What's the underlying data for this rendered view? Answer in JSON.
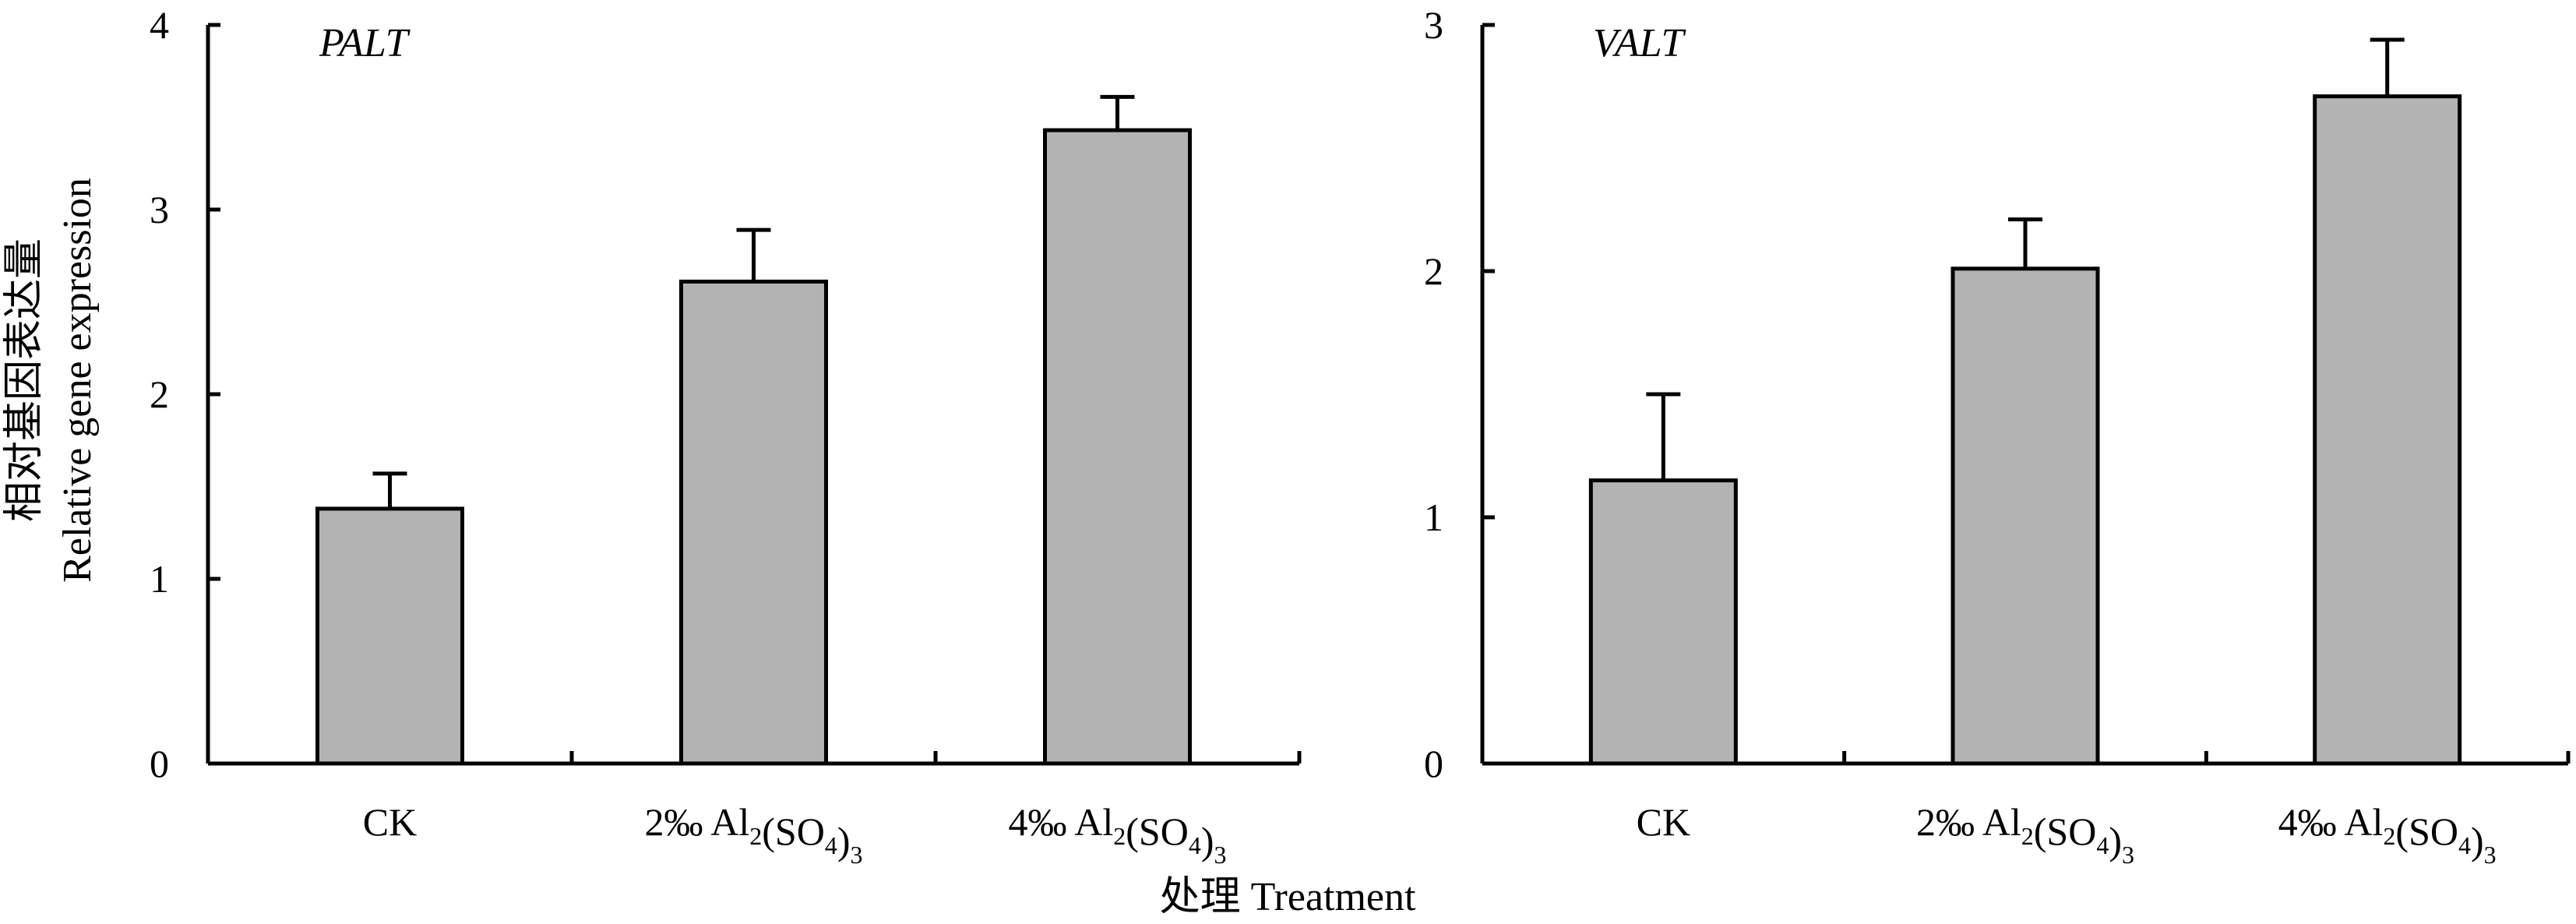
{
  "y_axis_title": {
    "line1": "相对基因表达量",
    "line2": "Relative gene expression"
  },
  "x_axis_title": "处理 Treatment",
  "colors": {
    "bar_fill": "#b3b3b3",
    "bar_stroke": "#000000",
    "axis": "#000000"
  },
  "chart_data": [
    {
      "type": "bar",
      "title": "PALT",
      "categories": [
        {
          "main": "CK",
          "sub1": "",
          "mid": "",
          "sub2": "",
          "tail": ""
        },
        {
          "main": "2‰ Al",
          "sub1": "2",
          "mid": "(SO",
          "sub2": "4",
          "tail": ")"
        },
        {
          "main": "4‰ Al",
          "sub1": "2",
          "mid": "(SO",
          "sub2": "4",
          "tail": ")"
        }
      ],
      "cat_trailing_sub": [
        "",
        "3",
        "3"
      ],
      "values": [
        1.38,
        2.61,
        3.43
      ],
      "errors": [
        0.19,
        0.28,
        0.18
      ],
      "ylim": [
        0,
        4
      ],
      "yticks": [
        "0",
        "1",
        "2",
        "3",
        "4"
      ],
      "xlabel": "处理 Treatment",
      "ylabel": "相对基因表达量 Relative gene expression"
    },
    {
      "type": "bar",
      "title": "VALT",
      "categories": [
        {
          "main": "CK",
          "sub1": "",
          "mid": "",
          "sub2": "",
          "tail": ""
        },
        {
          "main": "2‰ Al",
          "sub1": "2",
          "mid": "(SO",
          "sub2": "4",
          "tail": ")"
        },
        {
          "main": "4‰ Al",
          "sub1": "2",
          "mid": "(SO",
          "sub2": "4",
          "tail": ")"
        }
      ],
      "cat_trailing_sub": [
        "",
        "3",
        "3"
      ],
      "values": [
        1.15,
        2.01,
        2.71
      ],
      "errors": [
        0.35,
        0.2,
        0.23
      ],
      "ylim": [
        0,
        3
      ],
      "yticks": [
        "0",
        "1",
        "2",
        "3"
      ],
      "xlabel": "处理 Treatment",
      "ylabel": ""
    }
  ]
}
